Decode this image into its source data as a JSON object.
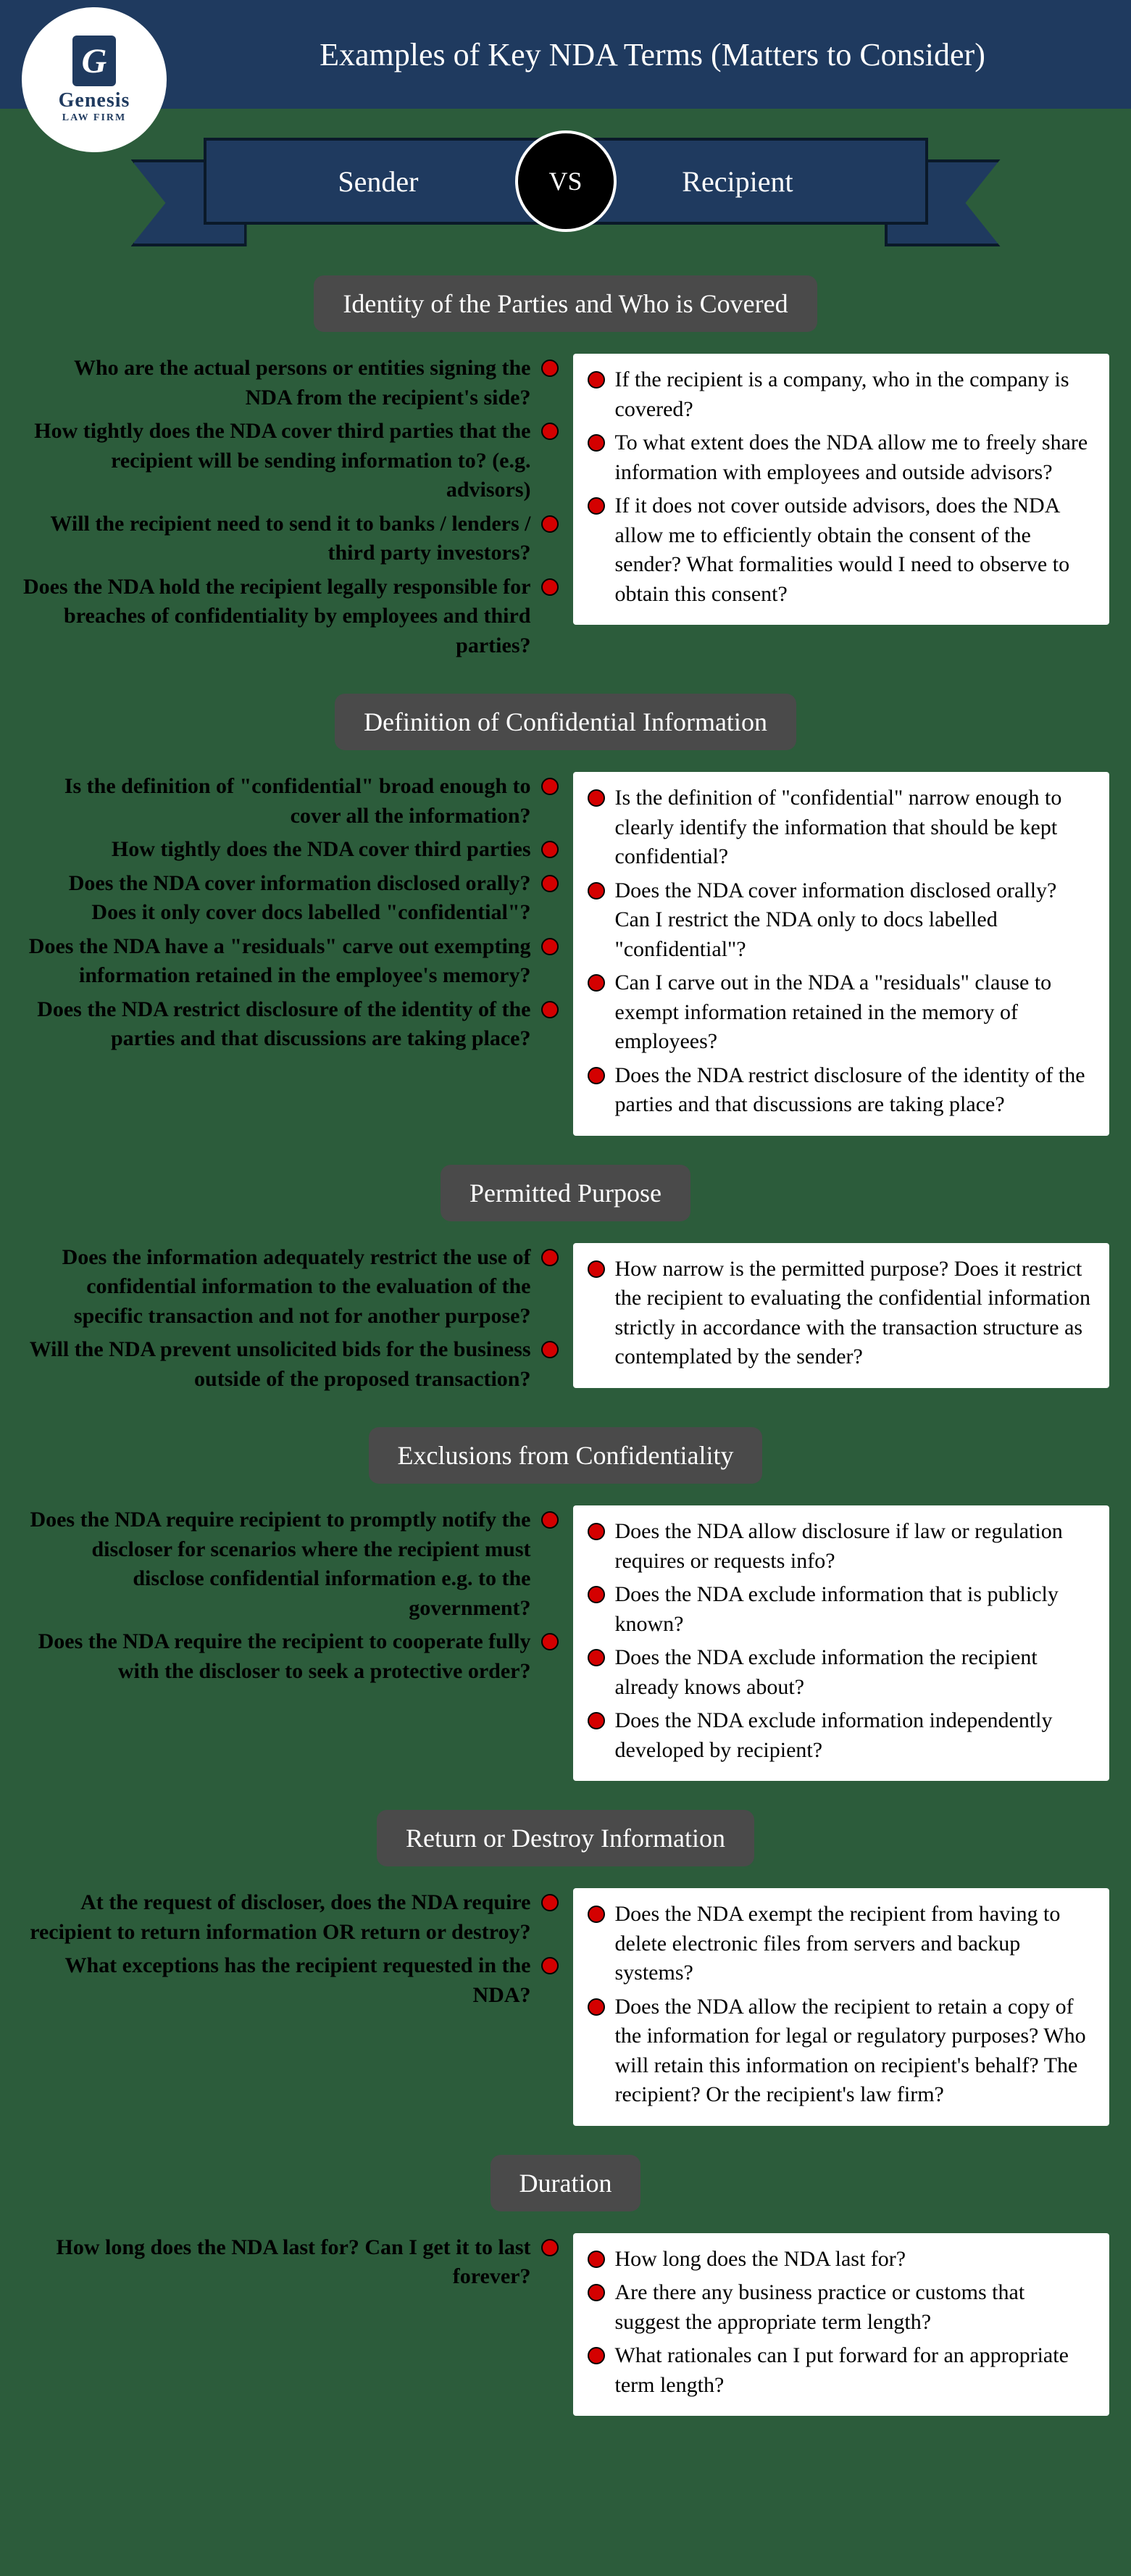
{
  "logo": {
    "g": "G",
    "name": "Genesis",
    "sub": "LAW FIRM"
  },
  "header_title": "Examples of Key NDA Terms (Matters to Consider)",
  "banner": {
    "left": "Sender",
    "vs": "VS",
    "right": "Recipient"
  },
  "sections": [
    {
      "heading": "Identity of the Parties and Who is Covered",
      "sender": [
        "Who are the actual persons or entities signing the NDA from the recipient's side?",
        "How tightly does the NDA cover third parties that the recipient will be sending information to? (e.g. advisors)",
        "Will the recipient need to send it to banks / lenders / third party investors?",
        "Does the NDA hold the recipient legally responsible for breaches of confidentiality by employees and third parties?"
      ],
      "recipient": [
        "If the recipient is a company, who in the company is covered?",
        "To what extent does the NDA allow me to freely share information with employees and outside advisors?",
        "If it does not cover outside advisors, does the NDA allow me to efficiently obtain the consent of the sender? What formalities would I need to observe to obtain this consent?"
      ]
    },
    {
      "heading": "Definition of Confidential Information",
      "sender": [
        "Is the definition of \"confidential\" broad enough to cover all the information?",
        "How tightly does the NDA cover third parties",
        "Does the NDA cover information disclosed orally? Does it only cover docs labelled \"confidential\"?",
        "Does the NDA have a \"residuals\" carve out exempting information retained in the employee's memory?",
        "Does the NDA restrict disclosure of the identity of the parties and that discussions are taking place?"
      ],
      "recipient": [
        "Is the definition of \"confidential\" narrow enough to clearly identify the information that should be kept confidential?",
        "Does the NDA cover information disclosed orally? Can I restrict the NDA only to docs labelled \"confidential\"?",
        "Can I carve out in the NDA a \"residuals\" clause to exempt information retained in the memory of employees?",
        "Does the NDA restrict disclosure of the identity of the parties and that discussions are taking place?"
      ]
    },
    {
      "heading": "Permitted Purpose",
      "sender": [
        "Does the information adequately restrict the use of confidential information to the evaluation of the specific transaction and not for another purpose?",
        "Will the NDA prevent unsolicited bids for the business outside of the proposed transaction?"
      ],
      "recipient": [
        "How narrow is the permitted purpose? Does it restrict the recipient to evaluating the confidential information strictly in accordance with the transaction structure as contemplated by the sender?"
      ]
    },
    {
      "heading": "Exclusions from Confidentiality",
      "sender": [
        "Does the NDA require recipient to promptly notify the discloser for scenarios where the recipient must disclose confidential information e.g. to the government?",
        "Does the NDA require the recipient to cooperate fully with the discloser to seek a protective order?"
      ],
      "recipient": [
        "Does the NDA allow disclosure if law or regulation requires or requests info?",
        "Does the NDA exclude information that is publicly known?",
        "Does the NDA exclude information the recipient already knows about?",
        "Does the NDA exclude information independently developed by recipient?"
      ]
    },
    {
      "heading": "Return or Destroy Information",
      "sender": [
        "At the request of discloser, does the NDA require recipient to return information OR return or destroy?",
        "What exceptions has the recipient requested in the NDA?"
      ],
      "recipient": [
        "Does the NDA exempt the recipient from having to delete electronic files from servers and backup systems?",
        "Does the NDA allow the recipient to retain a copy of the information for legal or regulatory purposes? Who will retain this information on recipient's behalf? The recipient? Or the recipient's law firm?"
      ]
    },
    {
      "heading": "Duration",
      "sender": [
        "How long does the NDA last for? Can I get it to last forever?"
      ],
      "recipient": [
        "How long does the NDA last for?",
        "Are there any business practice or customs that suggest the appropriate term length?",
        "What rationales can I put forward for an appropriate term length?"
      ]
    }
  ]
}
